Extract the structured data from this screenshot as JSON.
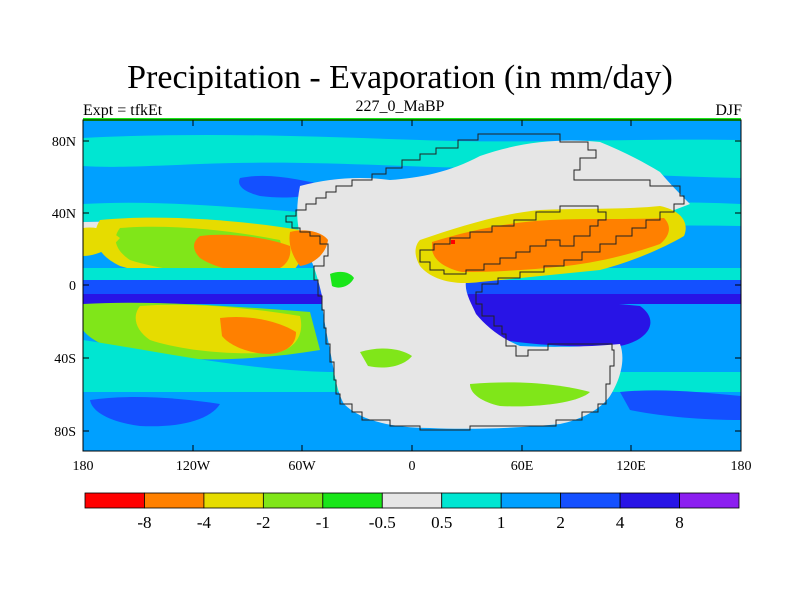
{
  "title": "Precipitation - Evaporation (in mm/day)",
  "subtitle": "227_0_MaBP",
  "left_label": "Expt = tfkEt",
  "right_label": "DJF",
  "lat_labels": [
    "80N",
    "40N",
    "0",
    "40S",
    "80S"
  ],
  "lon_labels": [
    "180",
    "120W",
    "60W",
    "0",
    "60E",
    "120E",
    "180"
  ],
  "colorbar": {
    "colors": [
      "#ff0000",
      "#ff8000",
      "#e6dc00",
      "#80e619",
      "#19e619",
      "#e6e6e6",
      "#00e6d2",
      "#00a0ff",
      "#1450ff",
      "#2814e6",
      "#8c1ef0"
    ],
    "labels": [
      "-8",
      "-4",
      "-2",
      "-1",
      "-0.5",
      "0.5",
      "1",
      "2",
      "4",
      "8"
    ]
  }
}
